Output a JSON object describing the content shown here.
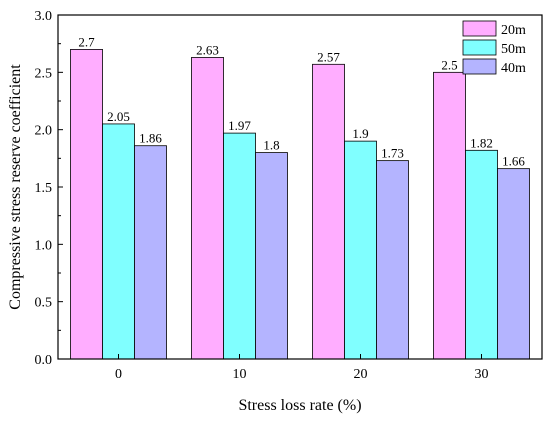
{
  "chart_data": {
    "type": "bar",
    "categories": [
      "0",
      "10",
      "20",
      "30"
    ],
    "series": [
      {
        "name": "20m",
        "values": [
          2.7,
          2.63,
          2.57,
          2.5
        ],
        "color": "#ffadff"
      },
      {
        "name": "50m",
        "values": [
          2.05,
          1.97,
          1.9,
          1.82
        ],
        "color": "#80ffff"
      },
      {
        "name": "40m",
        "values": [
          1.86,
          1.8,
          1.73,
          1.66
        ],
        "color": "#b4b4ff"
      }
    ],
    "data_labels": [
      [
        "2.7",
        "2.05",
        "1.86"
      ],
      [
        "2.63",
        "1.97",
        "1.8"
      ],
      [
        "2.57",
        "1.9",
        "1.73"
      ],
      [
        "2.5",
        "1.82",
        "1.66"
      ]
    ],
    "xlabel": "Stress loss rate (%)",
    "ylabel": "Compressive stress reserve coefficient",
    "ylim": [
      0,
      3.0
    ],
    "yticks": [
      "0.0",
      "0.5",
      "1.0",
      "1.5",
      "2.0",
      "2.5",
      "3.0"
    ],
    "legend_position": "top-right",
    "grid": false
  }
}
